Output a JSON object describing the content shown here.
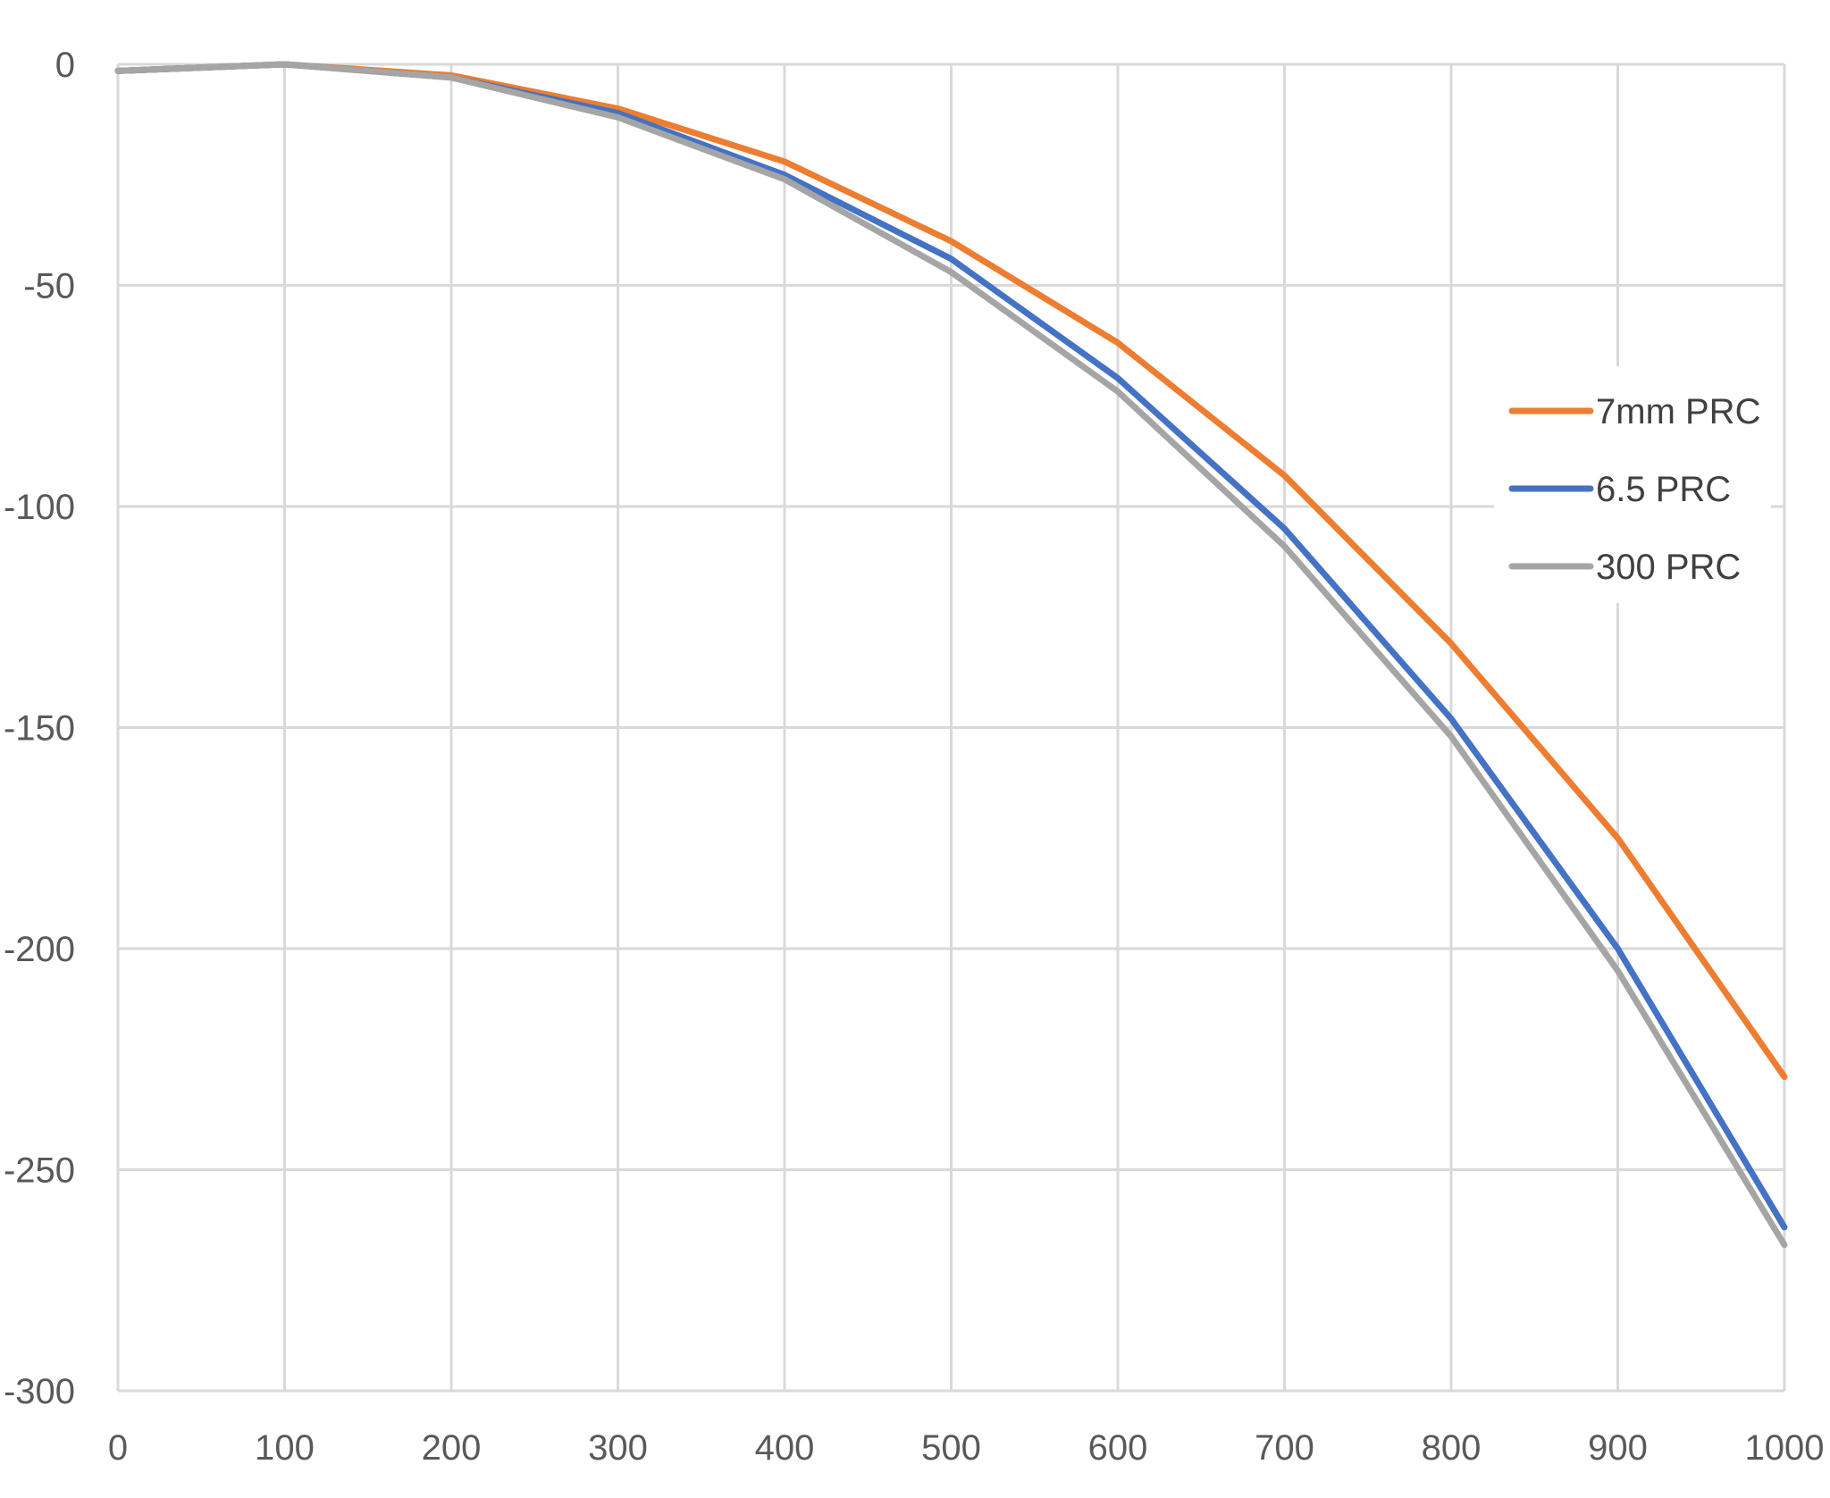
{
  "chart_data": {
    "type": "line",
    "title": "",
    "xlabel": "",
    "ylabel": "",
    "x": [
      0,
      100,
      200,
      300,
      400,
      500,
      600,
      700,
      800,
      900,
      1000
    ],
    "xlim": [
      0,
      1000
    ],
    "ylim": [
      -300,
      0
    ],
    "x_ticks": [
      "0",
      "100",
      "200",
      "300",
      "400",
      "500",
      "600",
      "700",
      "800",
      "900",
      "1000"
    ],
    "y_ticks": [
      "0",
      "-50",
      "-100",
      "-150",
      "-200",
      "-250",
      "-300"
    ],
    "y_tick_values": [
      0,
      -50,
      -100,
      -150,
      -200,
      -250,
      -300
    ],
    "grid": true,
    "legend_position": "right",
    "series": [
      {
        "name": "7mm PRC",
        "color": "#ED7D31",
        "values": [
          -1.5,
          0,
          -2.5,
          -10,
          -22,
          -40,
          -63,
          -93,
          -131,
          -175,
          -229
        ]
      },
      {
        "name": "6.5 PRC",
        "color": "#4472C4",
        "values": [
          -1.5,
          0,
          -3,
          -11,
          -25,
          -44,
          -71,
          -105,
          -148,
          -200,
          -263
        ]
      },
      {
        "name": "300 PRC",
        "color": "#A5A5A5",
        "values": [
          -1.5,
          0,
          -3,
          -12,
          -26,
          -47,
          -74,
          -109,
          -152,
          -205,
          -267
        ]
      }
    ]
  }
}
